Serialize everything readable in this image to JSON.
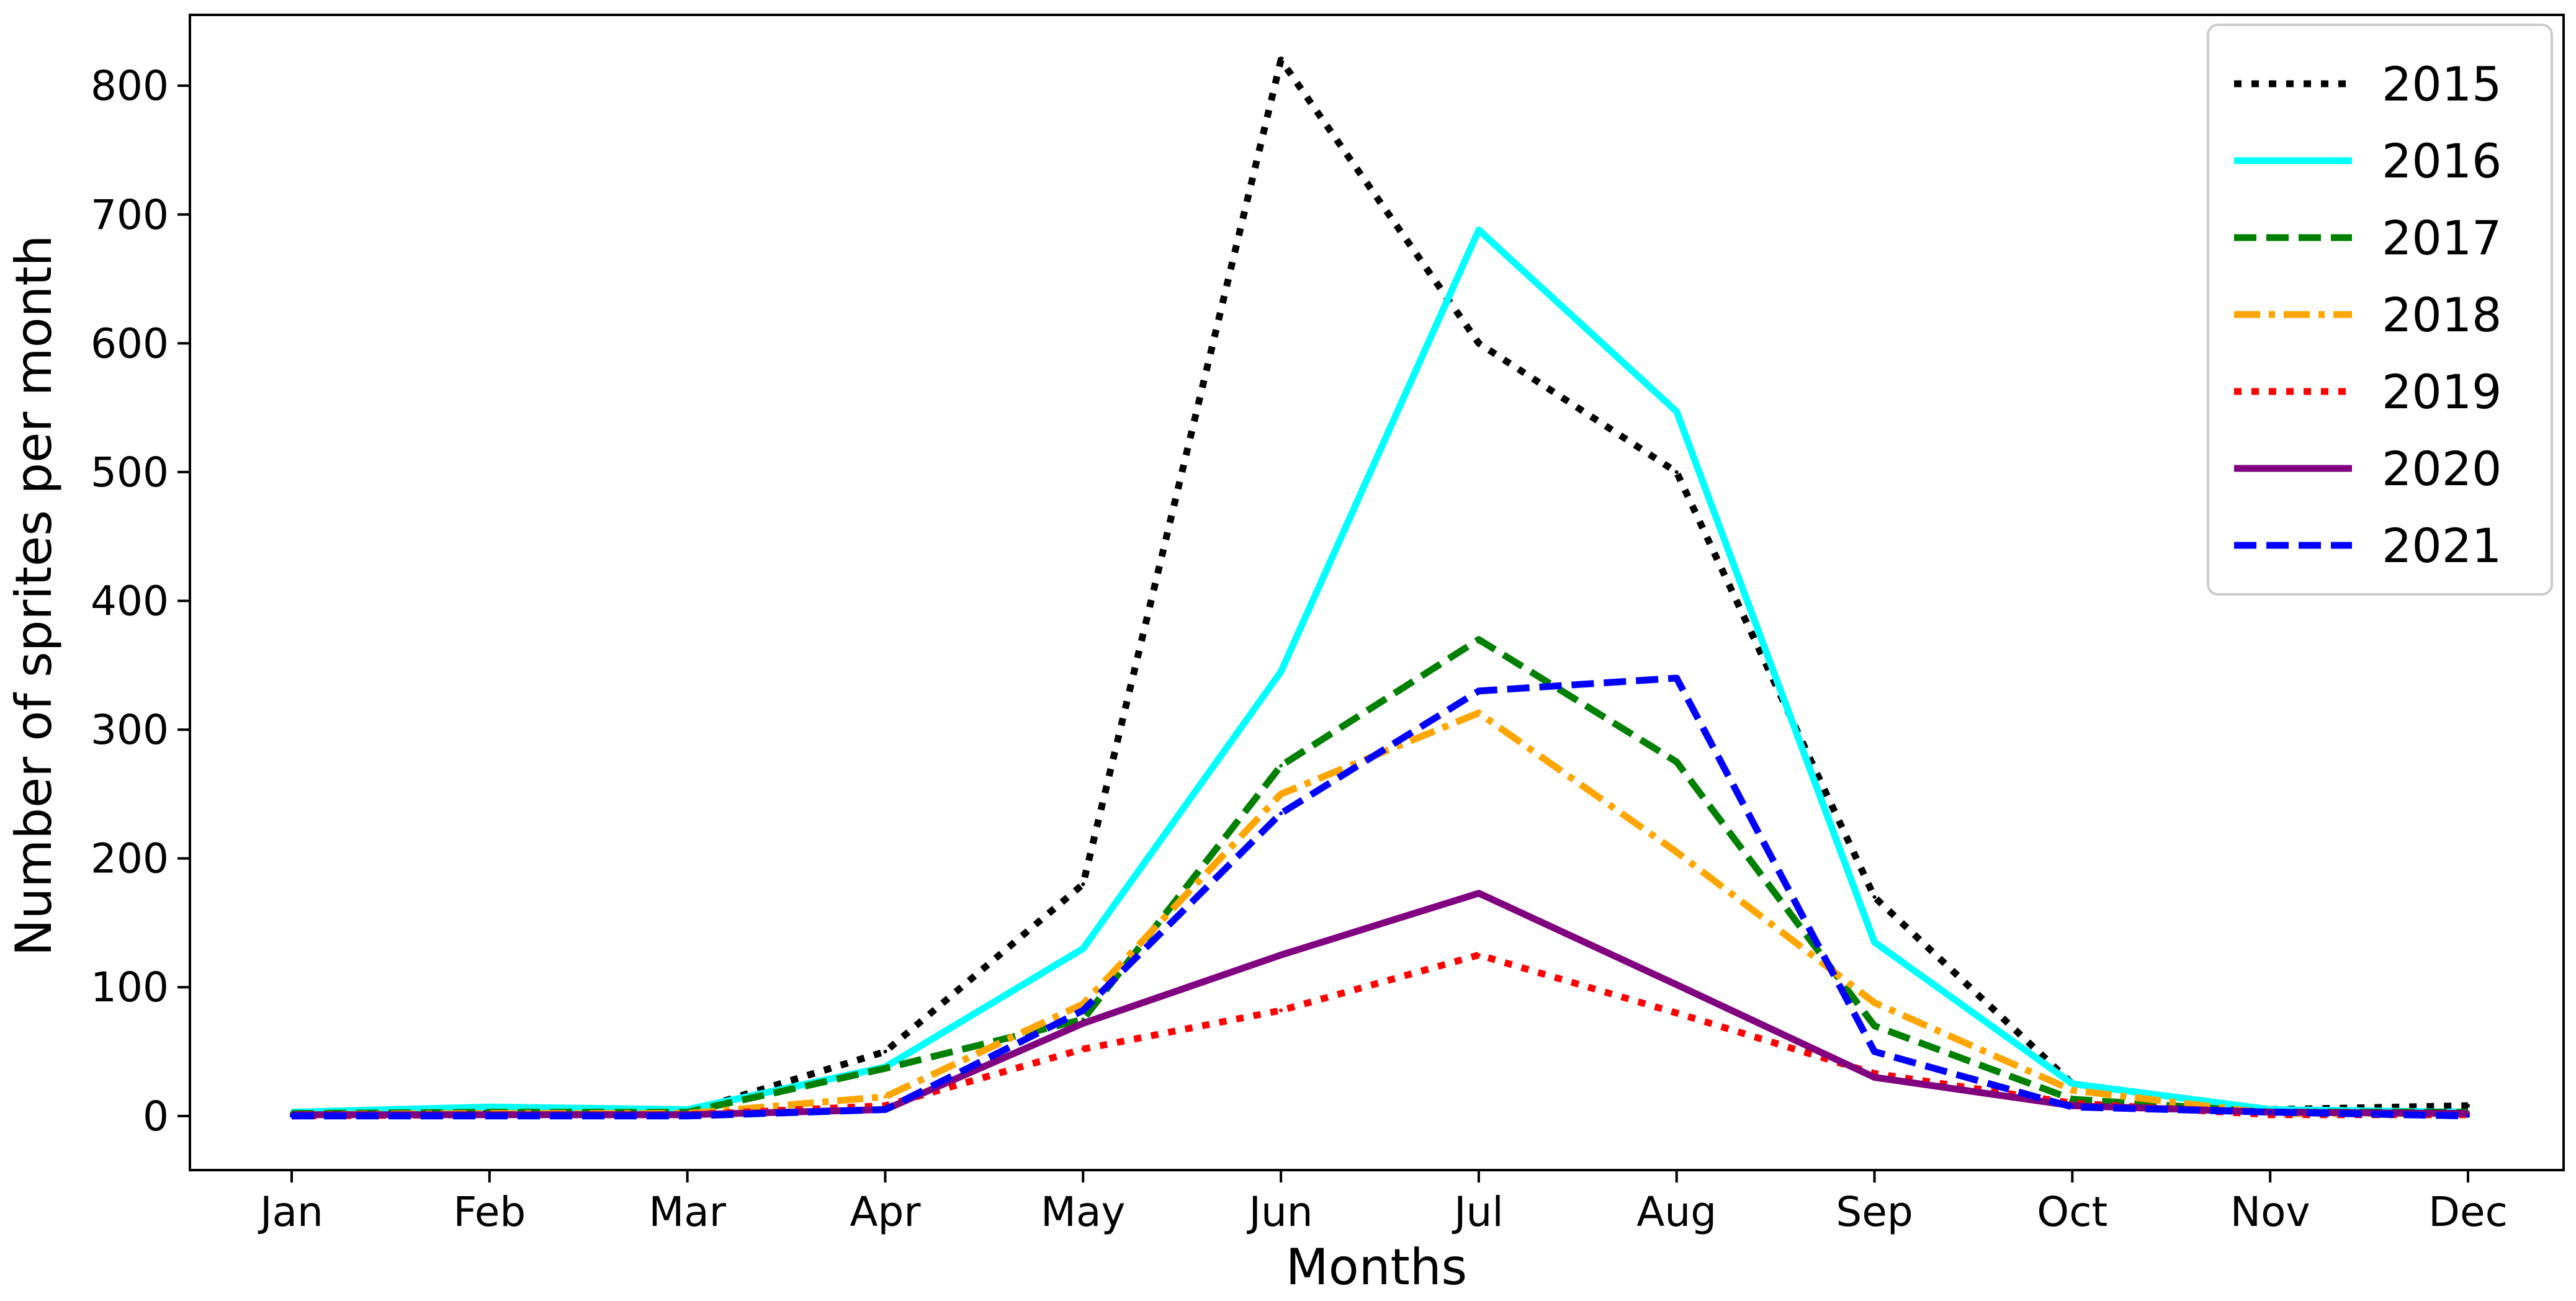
{
  "chart_data": {
    "type": "line",
    "title": "",
    "xlabel": "Months",
    "ylabel": "Number of sprites per month",
    "categories": [
      "Jan",
      "Feb",
      "Mar",
      "Apr",
      "May",
      "Jun",
      "Jul",
      "Aug",
      "Sep",
      "Oct",
      "Nov",
      "Dec"
    ],
    "ylim": [
      -42,
      855
    ],
    "yticks": [
      0,
      100,
      200,
      300,
      400,
      500,
      600,
      700,
      800
    ],
    "grid": false,
    "legend_position": "top-right",
    "series": [
      {
        "name": "2015",
        "color": "#000000",
        "style": "dotted",
        "values": [
          2,
          5,
          3,
          50,
          180,
          820,
          600,
          500,
          170,
          25,
          5,
          8
        ]
      },
      {
        "name": "2016",
        "color": "#00ffff",
        "style": "solid",
        "values": [
          3,
          7,
          5,
          38,
          130,
          345,
          688,
          547,
          135,
          25,
          5,
          3
        ]
      },
      {
        "name": "2017",
        "color": "#008000",
        "style": "dashed",
        "values": [
          2,
          3,
          3,
          37,
          75,
          272,
          370,
          275,
          70,
          13,
          3,
          3
        ]
      },
      {
        "name": "2018",
        "color": "#ffa500",
        "style": "dashdot",
        "values": [
          1,
          2,
          2,
          15,
          87,
          250,
          313,
          205,
          88,
          20,
          2,
          2
        ]
      },
      {
        "name": "2019",
        "color": "#ff0000",
        "style": "dotted",
        "values": [
          0,
          1,
          1,
          8,
          52,
          82,
          125,
          80,
          33,
          10,
          1,
          1
        ]
      },
      {
        "name": "2020",
        "color": "#800080",
        "style": "solid",
        "values": [
          1,
          1,
          1,
          5,
          72,
          125,
          173,
          102,
          30,
          8,
          3,
          2
        ]
      },
      {
        "name": "2021",
        "color": "#0000ff",
        "style": "dashed",
        "values": [
          0,
          0,
          0,
          5,
          82,
          235,
          330,
          340,
          50,
          7,
          3,
          0
        ]
      }
    ]
  }
}
